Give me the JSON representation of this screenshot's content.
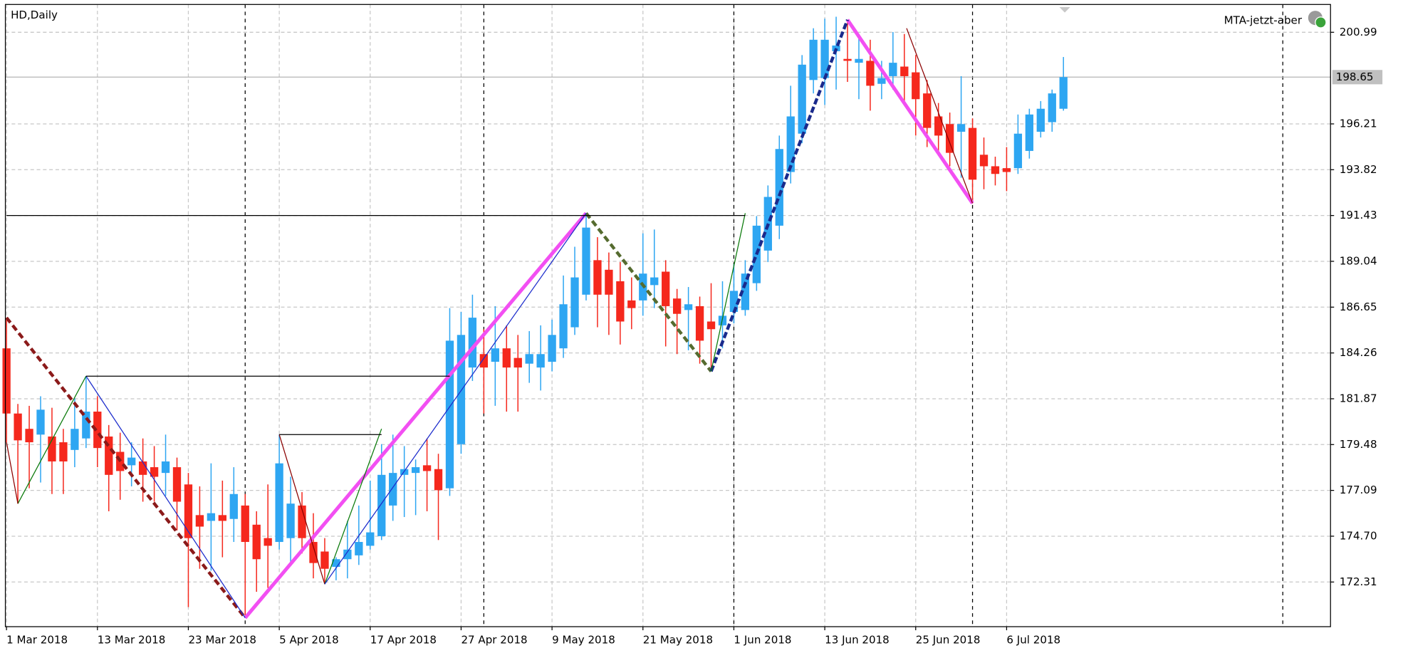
{
  "chart_data": {
    "type": "candlestick",
    "title": "HD,Daily",
    "annotation": "MTA-jetzt-aber",
    "last_price": 198.65,
    "up_color": "#2ea6f2",
    "down_color": "#f5281d",
    "grid": true,
    "xlim": [
      -0.1,
      116.5
    ],
    "ylim": [
      169.98,
      202.44
    ],
    "yticks": [
      200.99,
      196.21,
      193.82,
      191.43,
      189.04,
      186.65,
      184.26,
      181.87,
      179.48,
      177.09,
      {
        "value": 174.7,
        "label": "174.70"
      },
      172.31
    ],
    "separators": [
      21,
      42,
      64,
      85,
      112.3
    ],
    "categories": [
      "1 Mar 2018",
      null,
      null,
      null,
      null,
      null,
      null,
      null,
      "13 Mar 2018",
      null,
      null,
      null,
      null,
      null,
      null,
      null,
      "23 Mar 2018",
      null,
      null,
      null,
      null,
      null,
      null,
      null,
      "5 Apr 2018",
      null,
      null,
      null,
      null,
      null,
      null,
      null,
      "17 Apr 2018",
      null,
      null,
      null,
      null,
      null,
      null,
      null,
      "27 Apr 2018",
      null,
      null,
      null,
      null,
      null,
      null,
      null,
      "9 May 2018",
      null,
      null,
      null,
      null,
      null,
      null,
      null,
      "21 May 2018",
      null,
      null,
      null,
      null,
      null,
      null,
      null,
      "1 Jun 2018",
      null,
      null,
      null,
      null,
      null,
      null,
      null,
      "13 Jun 2018",
      null,
      null,
      null,
      null,
      null,
      null,
      null,
      "25 Jun 2018",
      null,
      null,
      null,
      null,
      null,
      null,
      null,
      "6 Jul 2018",
      null,
      null,
      null,
      null,
      null
    ],
    "open": [
      184.5,
      181.1,
      180.3,
      180.0,
      179.9,
      179.6,
      179.2,
      179.8,
      181.2,
      179.9,
      179.1,
      178.4,
      178.6,
      178.3,
      178.0,
      178.3,
      177.4,
      175.8,
      175.5,
      175.8,
      175.6,
      176.3,
      175.3,
      174.6,
      174.4,
      174.6,
      176.3,
      174.4,
      173.9,
      173.1,
      173.5,
      173.7,
      174.2,
      174.7,
      176.3,
      177.9,
      178.0,
      178.4,
      178.2,
      177.2,
      179.5,
      183.5,
      184.2,
      183.8,
      184.5,
      184.0,
      183.7,
      183.5,
      183.8,
      184.5,
      185.6,
      187.3,
      189.1,
      188.6,
      188.0,
      187.0,
      187.0,
      187.8,
      188.5,
      187.1,
      186.5,
      186.7,
      185.9,
      185.7,
      186.4,
      186.5,
      187.9,
      189.6,
      190.9,
      193.7,
      195.7,
      198.5,
      198.6,
      200.0,
      199.6,
      199.4,
      199.5,
      198.3,
      198.7,
      199.2,
      198.9,
      197.8,
      196.6,
      196.2,
      195.8,
      196.0,
      194.6,
      194.0,
      193.9,
      193.9,
      194.8,
      195.8,
      196.3,
      197.0
    ],
    "high": [
      186.1,
      181.6,
      181.5,
      182.0,
      181.4,
      180.3,
      181.9,
      183.05,
      182.0,
      180.5,
      180.1,
      179.6,
      179.8,
      179.4,
      180.0,
      178.8,
      178.0,
      177.3,
      178.5,
      177.6,
      178.3,
      176.9,
      176.0,
      177.4,
      180.0,
      177.8,
      177.0,
      175.9,
      174.6,
      173.6,
      175.5,
      176.3,
      177.6,
      179.5,
      180.0,
      179.4,
      178.7,
      179.8,
      179.0,
      186.6,
      186.4,
      187.3,
      185.5,
      186.7,
      185.7,
      185.2,
      185.4,
      185.7,
      186.0,
      188.3,
      189.8,
      191.55,
      190.3,
      189.5,
      189.0,
      188.2,
      190.5,
      190.7,
      189.1,
      187.6,
      187.7,
      187.2,
      187.9,
      188.0,
      188.9,
      189.1,
      191.4,
      193.0,
      195.6,
      198.2,
      199.8,
      201.2,
      201.7,
      201.8,
      201.64,
      200.9,
      200.6,
      199.5,
      201.0,
      200.9,
      199.8,
      198.5,
      197.3,
      196.8,
      198.7,
      196.5,
      195.5,
      194.5,
      195.0,
      196.7,
      197.0,
      197.4,
      198.0,
      199.7
    ],
    "low": [
      179.6,
      176.4,
      177.2,
      177.5,
      176.9,
      176.9,
      178.3,
      179.3,
      178.3,
      176.0,
      176.6,
      177.3,
      176.5,
      176.5,
      176.8,
      175.0,
      171.0,
      173.0,
      172.9,
      173.6,
      174.4,
      170.44,
      171.8,
      172.0,
      174.0,
      173.2,
      173.8,
      172.5,
      172.2,
      172.4,
      172.5,
      173.2,
      174.0,
      174.5,
      175.5,
      175.7,
      175.8,
      176.0,
      174.5,
      176.8,
      179.0,
      182.8,
      181.1,
      181.5,
      181.2,
      181.2,
      182.7,
      182.3,
      183.3,
      184.0,
      185.2,
      187.0,
      185.6,
      185.2,
      184.7,
      185.5,
      186.2,
      186.6,
      184.6,
      184.2,
      184.4,
      183.7,
      183.3,
      184.5,
      185.8,
      186.2,
      187.5,
      189.0,
      190.2,
      193.1,
      195.2,
      197.8,
      197.2,
      198.0,
      198.4,
      197.5,
      196.9,
      197.5,
      198.0,
      197.4,
      195.6,
      195.0,
      194.6,
      194.0,
      193.4,
      192.07,
      192.8,
      193.0,
      192.7,
      193.6,
      194.4,
      195.5,
      195.8,
      196.9
    ],
    "close": [
      181.1,
      179.7,
      179.6,
      181.3,
      178.6,
      178.6,
      180.3,
      181.2,
      179.3,
      177.9,
      178.1,
      178.8,
      177.9,
      177.8,
      178.6,
      176.5,
      174.6,
      175.2,
      175.9,
      175.5,
      176.9,
      174.4,
      173.5,
      174.2,
      178.5,
      176.4,
      174.6,
      173.3,
      173.0,
      173.5,
      174.0,
      174.4,
      174.9,
      177.9,
      178.0,
      178.2,
      178.3,
      178.1,
      177.1,
      184.9,
      185.2,
      186.1,
      183.5,
      184.5,
      183.5,
      183.5,
      184.2,
      184.2,
      185.2,
      186.8,
      188.2,
      190.8,
      187.3,
      187.3,
      185.9,
      186.6,
      188.4,
      188.2,
      186.7,
      186.3,
      186.8,
      184.9,
      185.5,
      186.2,
      187.5,
      188.4,
      190.9,
      192.4,
      194.9,
      196.6,
      199.3,
      200.6,
      200.6,
      200.3,
      199.5,
      199.6,
      198.2,
      198.6,
      199.4,
      198.7,
      197.5,
      196.0,
      195.6,
      194.7,
      196.2,
      193.3,
      194.0,
      193.6,
      193.7,
      195.7,
      196.7,
      197.0,
      197.8,
      198.65
    ],
    "lines": [
      {
        "color": "#8b1a1a",
        "width": 3.5,
        "dash": "7 4",
        "x": [
          0,
          21
        ],
        "y": [
          186.1,
          170.44
        ]
      },
      {
        "color": "#f24ff2",
        "width": 4,
        "dash": "none",
        "x": [
          21,
          51
        ],
        "y": [
          170.44,
          191.55
        ]
      },
      {
        "color": "#f24ff2",
        "width": 4,
        "dash": "none",
        "x": [
          74,
          85
        ],
        "y": [
          201.64,
          192.07
        ]
      },
      {
        "color": "#556b2f",
        "width": 3.5,
        "dash": "7 4",
        "x": [
          51,
          62
        ],
        "y": [
          191.55,
          183.3
        ]
      },
      {
        "color": "#1a2a8c",
        "width": 3.5,
        "dash": "7 3",
        "x": [
          62,
          74
        ],
        "y": [
          183.3,
          201.64
        ]
      },
      {
        "color": "#0a7a0a",
        "width": 1,
        "dash": "none",
        "x": [
          1,
          7
        ],
        "y": [
          176.4,
          183.05
        ]
      },
      {
        "color": "#1c2ccc",
        "width": 1,
        "dash": "none",
        "x": [
          7,
          21
        ],
        "y": [
          183.05,
          170.44
        ]
      },
      {
        "color": "#8b0000",
        "width": 1,
        "dash": "none",
        "x": [
          0,
          1
        ],
        "y": [
          179.6,
          176.4
        ]
      },
      {
        "color": "#8b0000",
        "width": 1,
        "dash": "none",
        "x": [
          24,
          28
        ],
        "y": [
          180.0,
          172.2
        ]
      },
      {
        "color": "#0a7a0a",
        "width": 1,
        "dash": "none",
        "x": [
          28,
          33
        ],
        "y": [
          172.2,
          180.3
        ]
      },
      {
        "color": "#1c2ccc",
        "width": 1,
        "dash": "none",
        "x": [
          28,
          51
        ],
        "y": [
          172.2,
          191.55
        ]
      },
      {
        "color": "#0a7a0a",
        "width": 1,
        "dash": "none",
        "x": [
          62,
          65
        ],
        "y": [
          183.3,
          191.55
        ]
      },
      {
        "color": "#8b0000",
        "width": 1,
        "dash": "none",
        "x": [
          79.2,
          85
        ],
        "y": [
          201.2,
          192.07
        ]
      },
      {
        "color": "#000000",
        "width": 1,
        "dash": "none",
        "x": [
          0,
          65
        ],
        "y": [
          191.43,
          191.43
        ]
      },
      {
        "color": "#000000",
        "width": 1,
        "dash": "none",
        "x": [
          7,
          39
        ],
        "y": [
          183.05,
          183.05
        ]
      },
      {
        "color": "#000000",
        "width": 1,
        "dash": "none",
        "x": [
          24,
          33
        ],
        "y": [
          180.0,
          180.0
        ]
      }
    ]
  }
}
